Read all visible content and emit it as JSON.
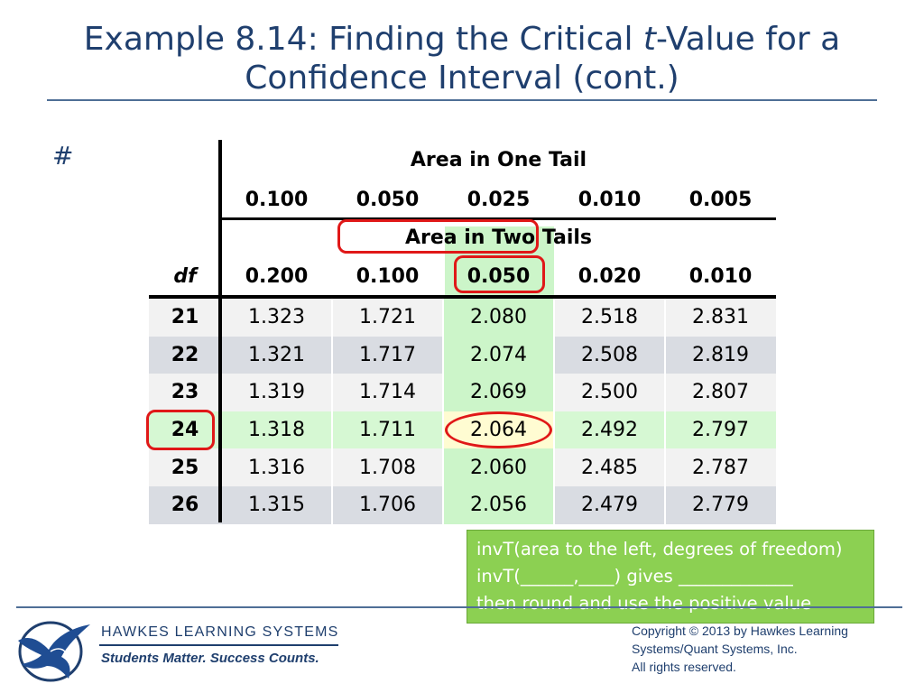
{
  "title": {
    "line1_prefix": "Example 8.14: Finding the Critical ",
    "line1_italic": "t",
    "line1_suffix": "-Value for a",
    "line2": "Confidence Interval (cont.)"
  },
  "bullet": "#",
  "table": {
    "one_tail_label": "Area in One Tail",
    "one_tail_values": [
      "0.100",
      "0.050",
      "0.025",
      "0.010",
      "0.005"
    ],
    "two_tail_label": "Area in Two Tails",
    "df_label": "df",
    "two_tail_values": [
      "0.200",
      "0.100",
      "0.050",
      "0.020",
      "0.010"
    ],
    "rows": [
      {
        "df": "21",
        "values": [
          "1.323",
          "1.721",
          "2.080",
          "2.518",
          "2.831"
        ]
      },
      {
        "df": "22",
        "values": [
          "1.321",
          "1.717",
          "2.074",
          "2.508",
          "2.819"
        ]
      },
      {
        "df": "23",
        "values": [
          "1.319",
          "1.714",
          "2.069",
          "2.500",
          "2.807"
        ]
      },
      {
        "df": "24",
        "values": [
          "1.318",
          "1.711",
          "2.064",
          "2.492",
          "2.797"
        ]
      },
      {
        "df": "25",
        "values": [
          "1.316",
          "1.708",
          "2.060",
          "2.485",
          "2.787"
        ]
      },
      {
        "df": "26",
        "values": [
          "1.315",
          "1.706",
          "2.056",
          "2.479",
          "2.779"
        ]
      }
    ],
    "highlight_color": "#ccf5c9",
    "marker_color": "#e01818"
  },
  "note": {
    "line1": "invT(area to the left, degrees of freedom)",
    "line2": "invT(______,____) gives _____________",
    "line3": "then round and use the positive value",
    "background": "#8cd052"
  },
  "footer": {
    "brand": "HAWKES LEARNING SYSTEMS",
    "tagline": "Students Matter. Success Counts.",
    "copyright_line1": "Copyright © 2013 by Hawkes Learning",
    "copyright_line2": "Systems/Quant Systems, Inc.",
    "copyright_line3": "All rights reserved."
  }
}
